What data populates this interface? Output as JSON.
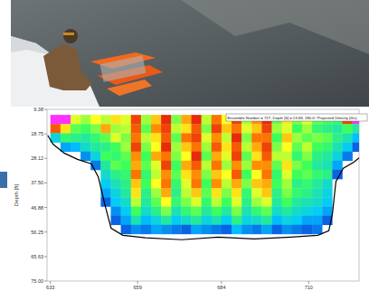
{
  "chart_data": {
    "type": "heatmap",
    "y_label": "Depth [ft]",
    "annotation": "Ensemble Number = 727, Depth [ft] = 13.68, 180.0° Projected Velocity (ft/s)",
    "xlim": [
      632,
      725
    ],
    "ylim": [
      9.38,
      75.0
    ],
    "xticks": [
      633,
      659,
      684,
      710
    ],
    "yticks": [
      9.38,
      18.75,
      28.12,
      {
        "value": 37.5,
        "label": "37.50"
      },
      46.88,
      56.25,
      65.63,
      {
        "value": 75.0,
        "label": "75.00"
      }
    ],
    "clim": [
      0,
      3
    ],
    "x_edges": [
      633,
      636,
      639,
      642,
      645,
      648,
      651,
      654,
      657,
      660,
      663,
      666,
      669,
      672,
      675,
      678,
      681,
      684,
      687,
      690,
      693,
      696,
      699,
      702,
      705,
      708,
      711,
      714,
      717,
      720,
      723,
      726
    ],
    "depth_edges": [
      11.5,
      15,
      18.5,
      22,
      25.5,
      29,
      32.5,
      36,
      39.5,
      43,
      46.5,
      50,
      53.5,
      57,
      60.5
    ],
    "cells": [
      [
        3.2,
        2.7,
        0.9
      ],
      [
        3.3,
        2.2,
        1.4,
        0.6
      ],
      [
        2.0,
        1.6,
        1.3,
        0.7
      ],
      [
        1.8,
        1.5,
        1.2,
        1.0,
        0.5
      ],
      [
        2.1,
        1.7,
        1.4,
        1.2,
        0.9,
        0.4
      ],
      [
        1.9,
        2.4,
        1.6,
        1.3,
        1.5,
        1.2,
        1.0,
        0.8,
        0.6,
        0.3
      ],
      [
        2.2,
        1.8,
        2.0,
        1.5,
        1.4,
        1.6,
        1.3,
        1.1,
        0.9,
        0.8,
        0.5,
        0.3
      ],
      [
        2.0,
        1.9,
        1.7,
        1.8,
        1.6,
        1.5,
        1.4,
        1.3,
        1.2,
        1.0,
        0.8,
        0.6,
        0.3
      ],
      [
        2.8,
        2.7,
        2.6,
        2.8,
        2.5,
        2.4,
        2.6,
        2.3,
        2.2,
        1.9,
        1.5,
        1.1,
        0.5
      ],
      [
        1.8,
        1.6,
        1.9,
        1.7,
        1.5,
        1.6,
        1.4,
        1.5,
        1.3,
        1.2,
        1.0,
        0.7,
        0.4
      ],
      [
        2.3,
        2.5,
        2.2,
        2.1,
        2.4,
        2.0,
        1.9,
        2.1,
        1.8,
        1.6,
        1.3,
        0.9,
        0.6
      ],
      [
        2.9,
        2.8,
        2.7,
        2.9,
        2.6,
        2.8,
        2.5,
        2.6,
        2.4,
        2.1,
        1.7,
        1.2,
        0.5
      ],
      [
        1.7,
        1.9,
        1.6,
        1.8,
        1.7,
        1.5,
        1.6,
        1.4,
        1.3,
        1.4,
        1.1,
        0.8,
        0.4
      ],
      [
        2.4,
        2.2,
        2.6,
        2.3,
        2.1,
        2.4,
        2.2,
        2.0,
        1.9,
        1.7,
        1.4,
        1.0,
        0.3
      ],
      [
        2.9,
        2.7,
        2.8,
        2.6,
        2.9,
        2.7,
        2.5,
        2.6,
        2.3,
        2.0,
        1.6,
        1.2,
        0.6
      ],
      [
        1.9,
        1.7,
        2.0,
        1.8,
        1.6,
        1.9,
        1.7,
        1.5,
        1.6,
        1.4,
        1.2,
        0.9,
        0.5
      ],
      [
        2.6,
        2.8,
        2.5,
        2.7,
        2.4,
        2.6,
        2.3,
        2.5,
        2.2,
        1.9,
        1.5,
        1.1,
        0.4
      ],
      [
        2.1,
        2.3,
        1.9,
        2.2,
        2.0,
        1.8,
        2.1,
        1.9,
        1.7,
        1.5,
        1.2,
        0.8,
        0.3
      ],
      [
        2.8,
        2.6,
        2.9,
        2.7,
        2.8,
        2.5,
        2.7,
        2.4,
        2.2,
        2.0,
        1.7,
        1.3,
        0.7
      ],
      [
        1.8,
        2.0,
        1.7,
        1.9,
        1.6,
        1.8,
        1.5,
        1.7,
        1.4,
        1.3,
        1.1,
        0.9,
        0.5
      ],
      [
        2.5,
        2.3,
        2.6,
        2.4,
        2.2,
        2.5,
        2.1,
        2.3,
        2.0,
        1.8,
        1.4,
        1.0,
        0.4
      ],
      [
        2.9,
        2.8,
        2.6,
        2.8,
        2.7,
        2.5,
        2.6,
        2.4,
        2.3,
        2.0,
        1.6,
        1.2,
        0.6
      ],
      [
        1.6,
        1.8,
        1.5,
        1.7,
        1.9,
        1.6,
        1.4,
        1.5,
        1.3,
        1.2,
        1.0,
        0.7,
        0.3
      ],
      [
        2.2,
        2.0,
        2.3,
        2.1,
        1.9,
        2.2,
        2.0,
        1.8,
        1.7,
        1.5,
        1.2,
        0.9,
        0.5
      ],
      [
        1.7,
        1.5,
        1.8,
        1.6,
        1.4,
        1.7,
        1.5,
        1.3,
        1.4,
        1.2,
        1.0,
        0.8,
        0.4
      ],
      [
        2.0,
        1.8,
        1.6,
        1.9,
        1.7,
        1.5,
        1.6,
        1.4,
        1.3,
        1.1,
        0.9,
        0.6,
        0.3
      ],
      [
        1.6,
        1.4,
        1.7,
        1.5,
        1.3,
        1.2,
        1.4,
        1.2,
        1.1,
        1.0,
        0.8,
        0.6,
        0.4
      ],
      [
        1.5,
        1.3,
        1.6,
        1.4,
        1.2,
        1.1,
        1.3,
        1.0,
        0.9,
        0.8,
        0.6,
        0.3
      ],
      [
        1.4,
        1.2,
        1.3,
        1.1,
        0.9,
        0.6,
        0.3
      ],
      [
        2.8,
        1.5,
        1.1,
        0.8,
        0.4
      ],
      [
        3.2,
        1.2,
        0.7,
        0.3
      ]
    ],
    "bed": {
      "x": [
        632.2,
        633.8,
        637.1,
        641.1,
        645.2,
        647.3,
        649.2,
        651.1,
        654.6,
        661.4,
        672.2,
        683.0,
        693.8,
        704.6,
        712.7,
        716.0,
        717.1,
        718.1,
        720.3,
        723.5,
        725.4
      ],
      "depth": [
        19.3,
        22.7,
        26.1,
        28.5,
        30.2,
        35.3,
        45.6,
        54.8,
        57.5,
        58.5,
        59.2,
        58.2,
        58.9,
        58.2,
        57.5,
        55.8,
        49.0,
        37.0,
        31.9,
        29.5,
        27.5
      ]
    }
  }
}
